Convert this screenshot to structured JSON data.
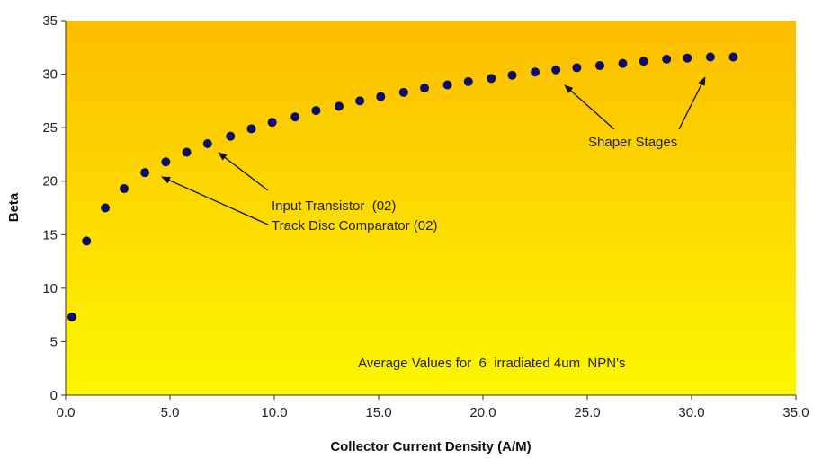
{
  "chart_data": {
    "type": "scatter",
    "xlabel": "Collector Current Density (A/M)",
    "ylabel": "Beta",
    "xlim": [
      0,
      35
    ],
    "ylim": [
      0,
      35
    ],
    "x_ticks": [
      "0.0",
      "5.0",
      "10.0",
      "15.0",
      "20.0",
      "25.0",
      "30.0",
      "35.0"
    ],
    "y_ticks": [
      "0",
      "5",
      "10",
      "15",
      "20",
      "25",
      "30",
      "35"
    ],
    "grid": false,
    "legend": "none",
    "background_gradient": [
      "#fcbd00",
      "#fcf700"
    ],
    "marker_color": "#0d0d66",
    "series": [
      {
        "points": [
          [
            0.3,
            7.3
          ],
          [
            1.0,
            14.4
          ],
          [
            1.9,
            17.5
          ],
          [
            2.8,
            19.3
          ],
          [
            3.8,
            20.8
          ],
          [
            4.8,
            21.8
          ],
          [
            5.8,
            22.7
          ],
          [
            6.8,
            23.5
          ],
          [
            7.9,
            24.2
          ],
          [
            8.9,
            24.9
          ],
          [
            9.9,
            25.5
          ],
          [
            11.0,
            26.0
          ],
          [
            12.0,
            26.6
          ],
          [
            13.1,
            27.0
          ],
          [
            14.1,
            27.5
          ],
          [
            15.1,
            27.9
          ],
          [
            16.2,
            28.3
          ],
          [
            17.2,
            28.7
          ],
          [
            18.3,
            29.0
          ],
          [
            19.3,
            29.3
          ],
          [
            20.4,
            29.6
          ],
          [
            21.4,
            29.9
          ],
          [
            22.5,
            30.2
          ],
          [
            23.5,
            30.4
          ],
          [
            24.5,
            30.6
          ],
          [
            25.6,
            30.8
          ],
          [
            26.7,
            31.0
          ],
          [
            27.7,
            31.2
          ],
          [
            28.8,
            31.4
          ],
          [
            29.8,
            31.5
          ],
          [
            30.9,
            31.6
          ],
          [
            32.0,
            31.6
          ]
        ]
      }
    ],
    "annotations": {
      "input_transistor": "Input Transistor  (02)",
      "track_disc": "Track Disc Comparator (02)",
      "shaper": "Shaper Stages",
      "average_note": "Average Values for  6  irradiated 4um  NPN's"
    }
  }
}
